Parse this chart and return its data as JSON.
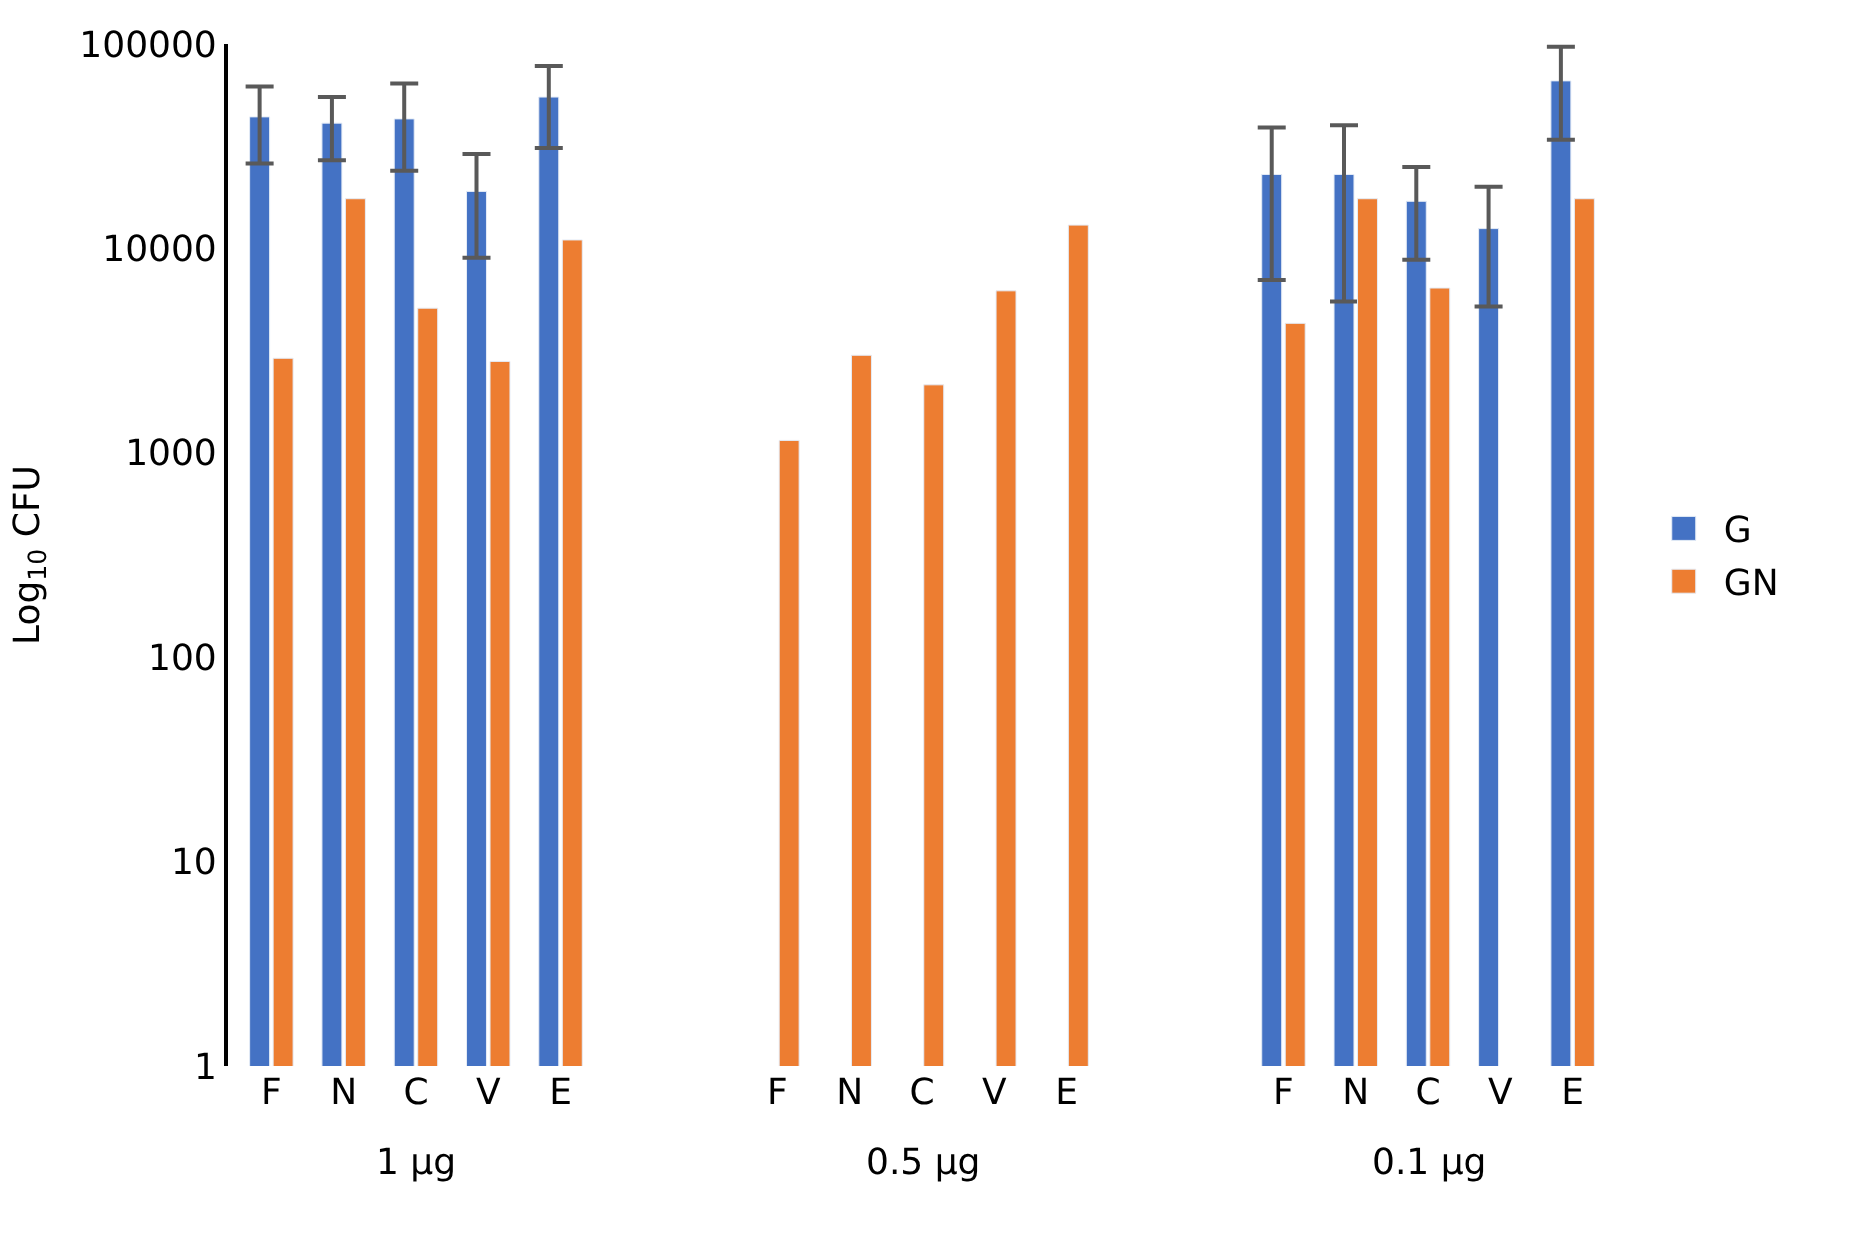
{
  "chart_data": {
    "type": "bar",
    "ylabel": "Log$_{10}$ CFU",
    "categories": [
      "F",
      "N",
      "C",
      "V",
      "E",
      null,
      null,
      "F",
      "N",
      "C",
      "V",
      "E",
      null,
      null,
      "F",
      "N",
      "C",
      "V",
      "E"
    ],
    "series": [
      {
        "name": "G",
        "color": "#4472c4",
        "values": [
          44000,
          41000,
          43000,
          19000,
          55000,
          null,
          null,
          null,
          null,
          null,
          null,
          null,
          null,
          null,
          23000,
          23000,
          17000,
          12500,
          66000
        ],
        "errors": [
          [
            26000,
            62000
          ],
          [
            27000,
            55000
          ],
          [
            24000,
            64000
          ],
          [
            9000,
            29000
          ],
          [
            31000,
            78000
          ],
          null,
          null,
          null,
          null,
          null,
          null,
          null,
          null,
          null,
          [
            7000,
            39000
          ],
          [
            5500,
            40000
          ],
          [
            8800,
            25000
          ],
          [
            5200,
            20000
          ],
          [
            34000,
            97000
          ]
        ]
      },
      {
        "name": "GN",
        "color": "#ed7d31",
        "values": [
          2900,
          17500,
          5100,
          2800,
          11000,
          null,
          null,
          1150,
          3000,
          2150,
          6200,
          13000,
          null,
          null,
          4300,
          17500,
          6400,
          null,
          17500
        ]
      }
    ],
    "annotations": [
      "1 µg",
      "0.5 µg",
      "0.1 µg"
    ],
    "log": "y",
    "ylim": [
      1,
      100000
    ],
    "yticks": [
      1,
      10,
      100,
      1000,
      10000,
      100000
    ],
    "legend": "right"
  }
}
